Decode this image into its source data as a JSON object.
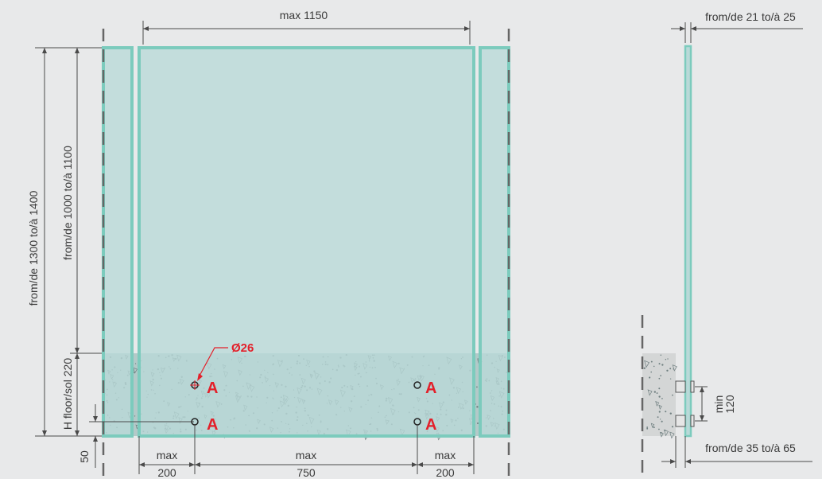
{
  "colors": {
    "background": "#e8e9ea",
    "glass_fill": "#b9d9d8",
    "glass_edge": "#7ccbbd",
    "concrete": "#b3c9c8",
    "dimension_line": "#4a4a4a",
    "dash_line": "#666666",
    "annotation_red": "#e3202a"
  },
  "front_view": {
    "width_dim": "max 1150",
    "height_total": "from/de 1300 to/à 1400",
    "height_glass": "from/de 1000 to/à 1100",
    "floor_height": "H floor/sol 220",
    "bottom_offset": "50",
    "hole_diameter": "Ø26",
    "anchor_label": "A",
    "bottom_dims": [
      {
        "top": "max",
        "bottom": "200"
      },
      {
        "top": "max",
        "bottom": "750"
      },
      {
        "top": "max",
        "bottom": "200"
      }
    ]
  },
  "side_view": {
    "glass_thickness": "from/de 21 to/à 25",
    "clamp_spacing_top": "min",
    "clamp_spacing_value": "120",
    "base_depth": "from/de 35 to/à 65"
  }
}
